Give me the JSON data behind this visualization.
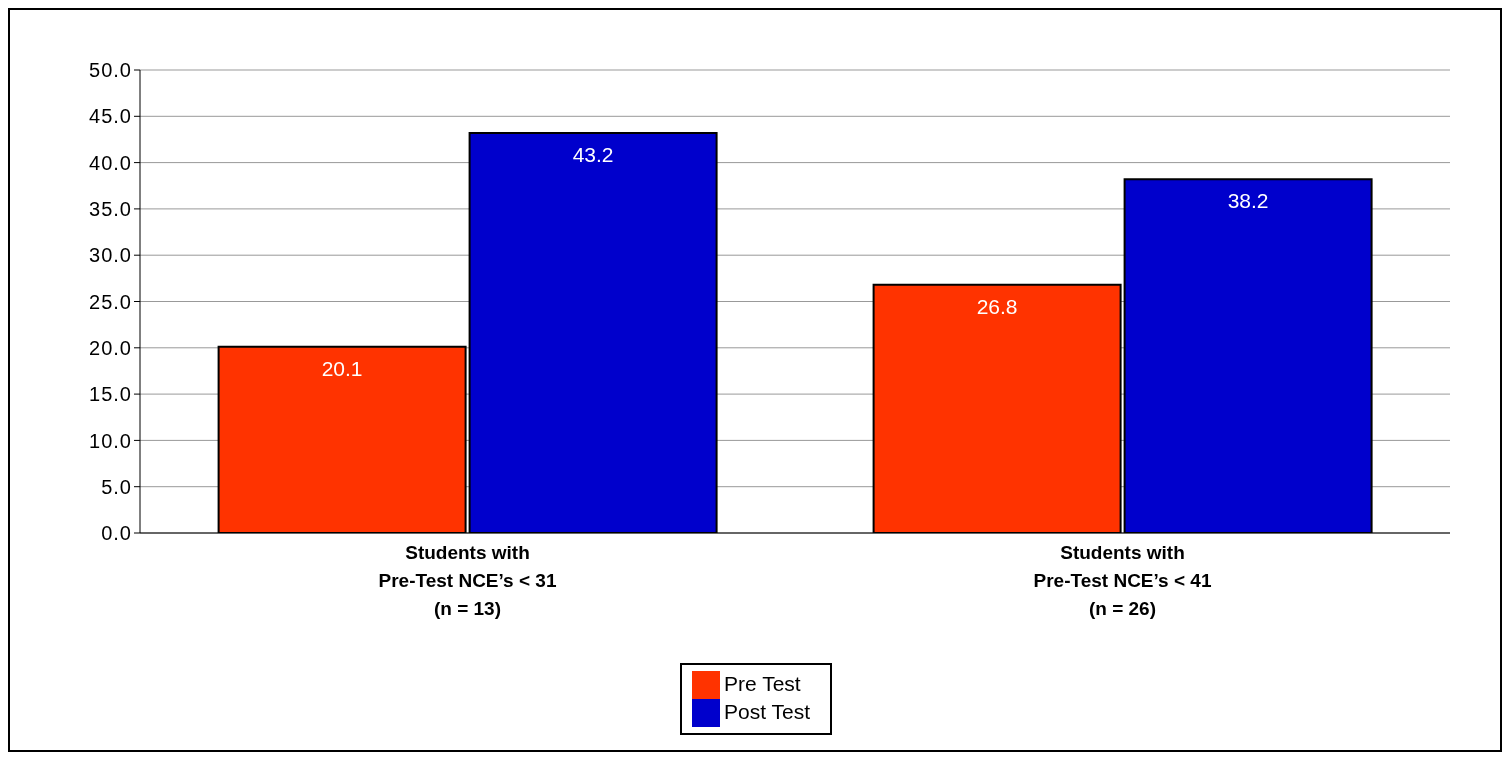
{
  "chart_data": {
    "type": "bar",
    "categories": [
      "Students with\nPre-Test NCE’s < 31\n\n(n = 13)",
      "Students with\nPre-Test NCE’s < 41\n\n(n = 26)"
    ],
    "series": [
      {
        "name": "Pre Test",
        "color": "#ff3300",
        "values": [
          20.1,
          26.8
        ]
      },
      {
        "name": "Post Test",
        "color": "#0000cc",
        "values": [
          43.2,
          38.2
        ]
      }
    ],
    "ylim": [
      0,
      50
    ],
    "yticks": [
      {
        "value": 0,
        "label": "0.0"
      },
      {
        "value": 5,
        "label": "5.0"
      },
      {
        "value": 10,
        "label": "10.0"
      },
      {
        "value": 15,
        "label": "15.0"
      },
      {
        "value": 20,
        "label": "20.0"
      },
      {
        "value": 25,
        "label": "25.0"
      },
      {
        "value": 30,
        "label": "30.0"
      },
      {
        "value": 35,
        "label": "35.0"
      },
      {
        "value": 40,
        "label": "40.0"
      },
      {
        "value": 45,
        "label": "45.0"
      },
      {
        "value": 50,
        "label": "50.0"
      }
    ],
    "grid": "y",
    "legend": "bottom",
    "data_labels": true
  }
}
